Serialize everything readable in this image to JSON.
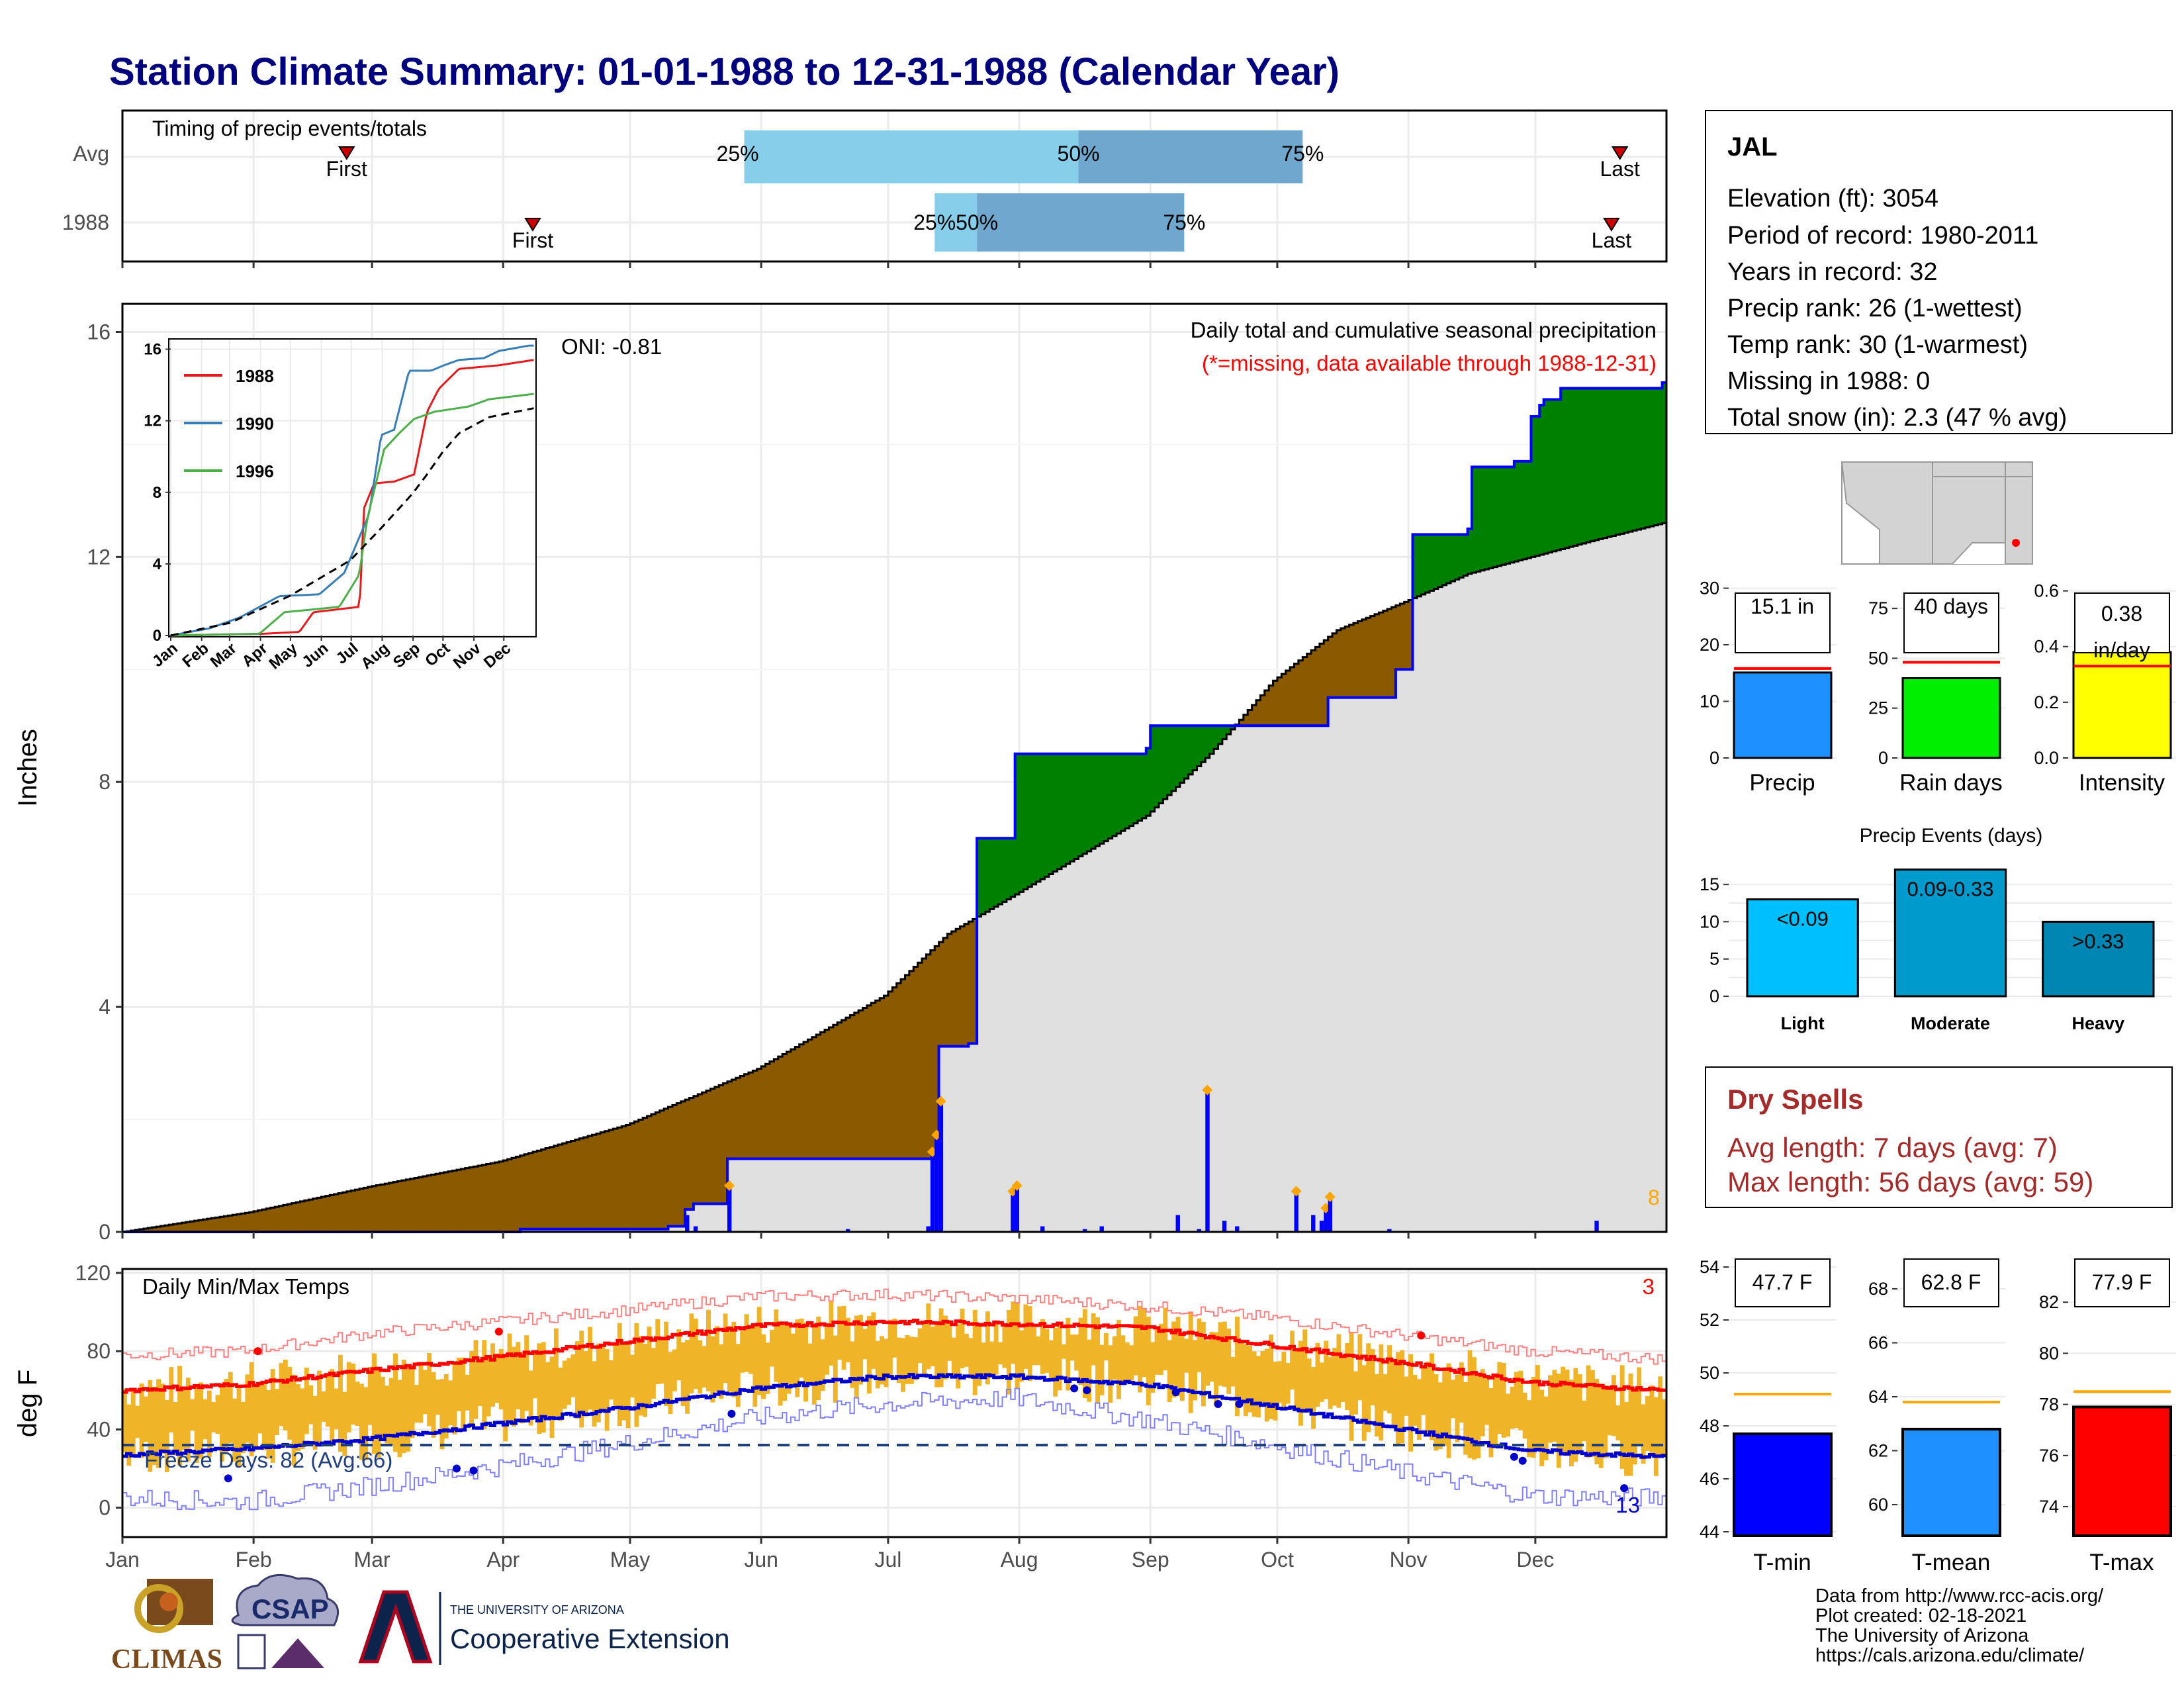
{
  "title": "Station Climate Summary: 01-01-1988 to 12-31-1988 (Calendar Year)",
  "months": [
    "Jan",
    "Feb",
    "Mar",
    "Apr",
    "May",
    "Jun",
    "Jul",
    "Aug",
    "Sep",
    "Oct",
    "Nov",
    "Dec"
  ],
  "timing": {
    "label": "Timing of precip events/totals",
    "rows": [
      "Avg",
      "1988"
    ],
    "first_label": "First",
    "last_label": "Last",
    "p25": "25%",
    "p50": "50%",
    "p75": "75%"
  },
  "station": {
    "name": "JAL",
    "lines": [
      "Elevation (ft): 3054",
      "Period of record: 1980-2011",
      "Years in record: 32",
      "Precip rank: 26 (1-wettest)",
      "Temp rank: 30 (1-warmest)",
      "Missing in 1988: 0",
      "Total snow (in): 2.3 (47 % avg)"
    ]
  },
  "precip_panel": {
    "ylabel": "Inches",
    "title": "Daily total and cumulative seasonal precipitation",
    "missing_note": "(*=missing, data available through 1988-12-31)",
    "oni": "ONI: -0.81",
    "count_label": "8"
  },
  "inset": {
    "legend": [
      "1988",
      "1990",
      "1996"
    ],
    "colors": [
      "#e41a1c",
      "#377eb8",
      "#4daf4a"
    ],
    "months": [
      "Jan",
      "Feb",
      "Mar",
      "Apr",
      "May",
      "Jun",
      "Jul",
      "Aug",
      "Sep",
      "Oct",
      "Nov",
      "Dec"
    ]
  },
  "temp_panel": {
    "ylabel": "deg F",
    "title": "Daily Min/Max Temps",
    "freeze": "Freeze Days: 82 (Avg:66)",
    "hot_count": "3",
    "cold_count": "13"
  },
  "summary_bars": {
    "precip": {
      "label": "Precip",
      "value_text": "15.1 in"
    },
    "raindays": {
      "label": "Rain days",
      "value_text": "40 days"
    },
    "intensity": {
      "label": "Intensity",
      "value_text_1": "0.38",
      "value_text_2": "in/day"
    }
  },
  "events": {
    "title": "Precip Events (days)",
    "bars": [
      {
        "label": "Light",
        "text": "<0.09"
      },
      {
        "label": "Moderate",
        "text": "0.09-0.33"
      },
      {
        "label": "Heavy",
        "text": ">0.33"
      }
    ]
  },
  "dry_spells": {
    "title": "Dry Spells",
    "line1": "Avg length: 7 days (avg: 7)",
    "line2": "Max length: 56 days (avg: 59)"
  },
  "temp_bars": {
    "tmin": {
      "label": "T-min",
      "value_text": "47.7 F"
    },
    "tmean": {
      "label": "T-mean",
      "value_text": "62.8 F"
    },
    "tmax": {
      "label": "T-max",
      "value_text": "77.9 F"
    }
  },
  "footer": {
    "lines": [
      "Data from http://www.rcc-acis.org/",
      "Plot created: 02-18-2021",
      "The University of Arizona",
      "https://cals.arizona.edu/climate/"
    ],
    "logo_climas": "CLIMAS",
    "logo_csap": "CSAP",
    "logo_ua_top": "THE UNIVERSITY OF ARIZONA",
    "logo_ua_bottom": "Cooperative Extension"
  },
  "chart_data": [
    {
      "type": "bar",
      "name": "timing",
      "rows": [
        "Avg",
        "1988"
      ],
      "first_day": [
        54,
        98
      ],
      "last_day": [
        355,
        353
      ],
      "p25_day": [
        148,
        193
      ],
      "p50_day": [
        227,
        203
      ],
      "p75_day": [
        280,
        252
      ]
    },
    {
      "type": "area",
      "name": "cumulative precipitation",
      "x_axis": "day of year (1988)",
      "ylim": [
        0,
        16.5
      ],
      "yticks": [
        0,
        4,
        8,
        12,
        16
      ],
      "cum_1988": [
        [
          1,
          0
        ],
        [
          95,
          0.05
        ],
        [
          130,
          0.1
        ],
        [
          134,
          0.4
        ],
        [
          136,
          0.5
        ],
        [
          144,
          1.3
        ],
        [
          193,
          1.35
        ],
        [
          194,
          3.3
        ],
        [
          201,
          3.35
        ],
        [
          203,
          7.0
        ],
        [
          211,
          7.0
        ],
        [
          212,
          8.5
        ],
        [
          243,
          8.6
        ],
        [
          244,
          9.0
        ],
        [
          285,
          9.0
        ],
        [
          286,
          9.5
        ],
        [
          301,
          9.5
        ],
        [
          302,
          10.0
        ],
        [
          305,
          10.0
        ],
        [
          306,
          12.4
        ],
        [
          319,
          12.5
        ],
        [
          320,
          13.6
        ],
        [
          330,
          13.7
        ],
        [
          334,
          14.5
        ],
        [
          336,
          14.7
        ],
        [
          337,
          14.8
        ],
        [
          341,
          15.0
        ],
        [
          365,
          15.1
        ]
      ],
      "cum_average": [
        [
          1,
          0
        ],
        [
          31,
          0.35
        ],
        [
          59,
          0.8
        ],
        [
          90,
          1.25
        ],
        [
          120,
          1.9
        ],
        [
          151,
          2.9
        ],
        [
          181,
          4.2
        ],
        [
          196,
          5.3
        ],
        [
          212,
          6.0
        ],
        [
          243,
          7.4
        ],
        [
          258,
          8.5
        ],
        [
          273,
          9.8
        ],
        [
          288,
          10.7
        ],
        [
          304,
          11.2
        ],
        [
          319,
          11.7
        ],
        [
          334,
          12.0
        ],
        [
          349,
          12.3
        ],
        [
          365,
          12.6
        ],
        [
          366,
          13.9
        ]
      ],
      "daily_1988": [
        [
          134,
          0.3
        ],
        [
          136,
          0.1
        ],
        [
          144,
          0.8
        ],
        [
          172,
          0.05
        ],
        [
          191,
          0.1
        ],
        [
          192,
          1.4
        ],
        [
          193,
          1.7
        ],
        [
          194,
          2.3
        ],
        [
          211,
          0.7
        ],
        [
          212,
          0.8
        ],
        [
          218,
          0.1
        ],
        [
          228,
          0.05
        ],
        [
          232,
          0.1
        ],
        [
          250,
          0.3
        ],
        [
          255,
          0.05
        ],
        [
          257,
          2.5
        ],
        [
          261,
          0.2
        ],
        [
          264,
          0.1
        ],
        [
          278,
          0.7
        ],
        [
          282,
          0.3
        ],
        [
          284,
          0.2
        ],
        [
          285,
          0.4
        ],
        [
          286,
          0.6
        ],
        [
          300,
          0.05
        ],
        [
          349,
          0.2
        ]
      ]
    },
    {
      "type": "line",
      "name": "inset cumulative",
      "ylim": [
        0,
        16.5
      ],
      "yticks": [
        0,
        4,
        8,
        12,
        16
      ],
      "series": [
        {
          "name": "1988",
          "values": [
            [
              1,
              0
            ],
            [
              95,
              0.1
            ],
            [
              130,
              0.2
            ],
            [
              144,
              1.3
            ],
            [
              190,
              1.6
            ],
            [
              192,
              3.0
            ],
            [
              194,
              7.0
            ],
            [
              205,
              8.5
            ],
            [
              225,
              8.6
            ],
            [
              245,
              9.0
            ],
            [
              258,
              12.5
            ],
            [
              270,
              13.8
            ],
            [
              290,
              14.9
            ],
            [
              330,
              15.1
            ],
            [
              365,
              15.4
            ]
          ]
        },
        {
          "name": "1990",
          "values": [
            [
              1,
              0
            ],
            [
              40,
              0.4
            ],
            [
              70,
              1.0
            ],
            [
              110,
              2.2
            ],
            [
              150,
              2.3
            ],
            [
              175,
              3.5
            ],
            [
              200,
              6.8
            ],
            [
              212,
              11.2
            ],
            [
              225,
              11.5
            ],
            [
              240,
              14.8
            ],
            [
              262,
              14.8
            ],
            [
              275,
              15.1
            ],
            [
              290,
              15.4
            ],
            [
              315,
              15.5
            ],
            [
              330,
              15.9
            ],
            [
              360,
              16.2
            ]
          ]
        },
        {
          "name": "1996",
          "values": [
            [
              1,
              0
            ],
            [
              90,
              0.1
            ],
            [
              115,
              1.3
            ],
            [
              170,
              1.6
            ],
            [
              190,
              3.4
            ],
            [
              198,
              6.5
            ],
            [
              215,
              10.4
            ],
            [
              230,
              11.3
            ],
            [
              245,
              12.1
            ],
            [
              265,
              12.5
            ],
            [
              300,
              12.8
            ],
            [
              320,
              13.2
            ],
            [
              365,
              13.5
            ]
          ]
        },
        {
          "name": "average",
          "values": [
            [
              1,
              0
            ],
            [
              60,
              0.7
            ],
            [
              120,
              2.2
            ],
            [
              181,
              4.2
            ],
            [
              212,
              6.0
            ],
            [
              243,
              7.9
            ],
            [
              258,
              9.0
            ],
            [
              273,
              10.2
            ],
            [
              290,
              11.3
            ],
            [
              320,
              12.2
            ],
            [
              365,
              12.7
            ]
          ]
        }
      ]
    },
    {
      "type": "line",
      "name": "daily temperatures",
      "ylim": [
        -15,
        122
      ],
      "yticks": [
        0,
        40,
        80,
        120
      ],
      "freeze_line": 32,
      "avg_max": [
        [
          1,
          60
        ],
        [
          30,
          63
        ],
        [
          59,
          70
        ],
        [
          90,
          77
        ],
        [
          120,
          85
        ],
        [
          151,
          93
        ],
        [
          181,
          95
        ],
        [
          212,
          94
        ],
        [
          243,
          92
        ],
        [
          273,
          83
        ],
        [
          304,
          74
        ],
        [
          334,
          64
        ],
        [
          365,
          60
        ]
      ],
      "avg_min": [
        [
          1,
          27
        ],
        [
          30,
          30
        ],
        [
          59,
          35
        ],
        [
          90,
          43
        ],
        [
          120,
          51
        ],
        [
          151,
          61
        ],
        [
          181,
          67
        ],
        [
          212,
          67
        ],
        [
          243,
          63
        ],
        [
          273,
          52
        ],
        [
          304,
          40
        ],
        [
          334,
          29
        ],
        [
          365,
          26
        ]
      ],
      "record_max": [
        [
          1,
          78
        ],
        [
          30,
          80
        ],
        [
          59,
          89
        ],
        [
          90,
          95
        ],
        [
          120,
          101
        ],
        [
          151,
          108
        ],
        [
          181,
          109
        ],
        [
          212,
          107
        ],
        [
          243,
          103
        ],
        [
          273,
          97
        ],
        [
          304,
          88
        ],
        [
          334,
          80
        ],
        [
          365,
          76
        ]
      ],
      "record_min": [
        [
          1,
          5
        ],
        [
          30,
          3
        ],
        [
          59,
          11
        ],
        [
          90,
          21
        ],
        [
          120,
          33
        ],
        [
          151,
          46
        ],
        [
          181,
          53
        ],
        [
          212,
          56
        ],
        [
          243,
          45
        ],
        [
          273,
          32
        ],
        [
          304,
          18
        ],
        [
          334,
          6
        ],
        [
          365,
          5
        ]
      ]
    },
    {
      "type": "bar",
      "name": "summary precip",
      "values": {
        "precip_in": 15.1,
        "precip_avg_in": 15.8,
        "rain_days": 40,
        "rain_days_avg": 48,
        "intensity": 0.38,
        "intensity_avg": 0.33
      },
      "yticks": {
        "precip": [
          0,
          10,
          20,
          30
        ],
        "raindays": [
          0,
          25,
          50,
          75
        ],
        "intensity": [
          0.0,
          0.2,
          0.4,
          0.6
        ]
      }
    },
    {
      "type": "bar",
      "name": "precip events",
      "categories": [
        "Light",
        "Moderate",
        "Heavy"
      ],
      "values": [
        13,
        17,
        10
      ],
      "ylim": [
        0,
        17.5
      ],
      "yticks": [
        0,
        5,
        10,
        15
      ]
    },
    {
      "type": "bar",
      "name": "temperature summary",
      "categories": [
        "T-min",
        "T-mean",
        "T-max"
      ],
      "values": [
        47.7,
        62.8,
        77.9
      ],
      "averages": [
        49.2,
        63.8,
        78.5
      ],
      "yticks": {
        "tmin": [
          44,
          46,
          48,
          50,
          52,
          54
        ],
        "tmean": [
          60,
          62,
          64,
          66,
          68
        ],
        "tmax": [
          74,
          76,
          78,
          80,
          82
        ]
      }
    }
  ]
}
